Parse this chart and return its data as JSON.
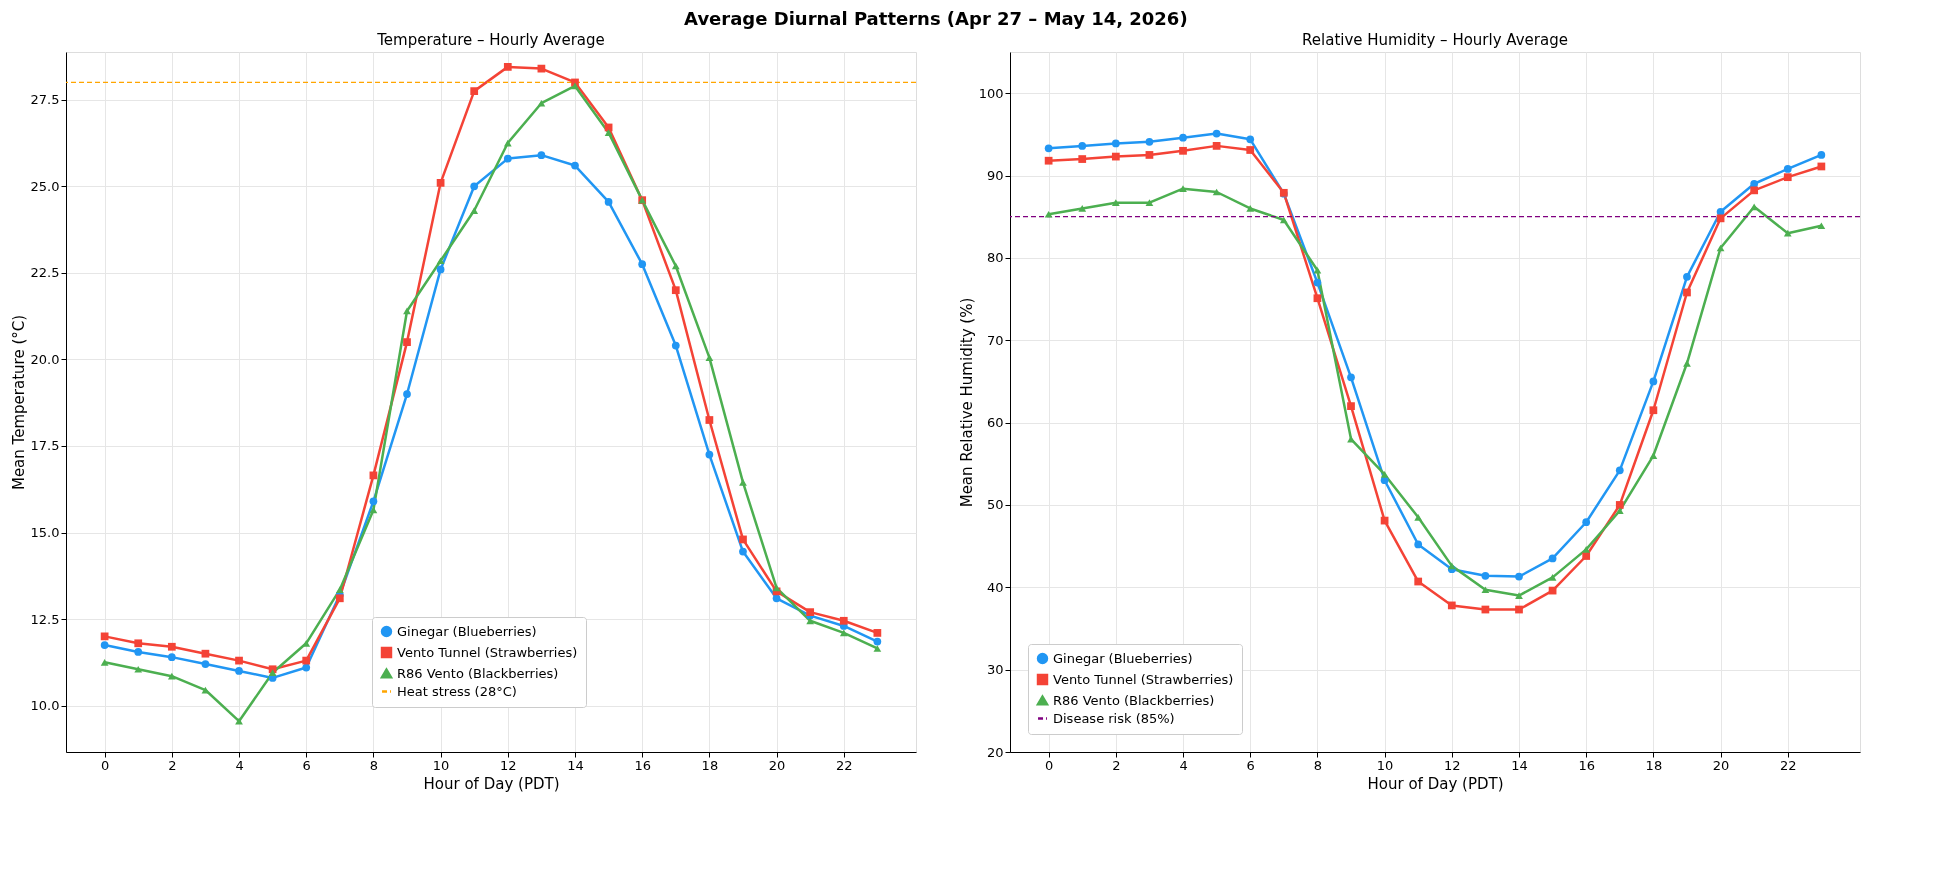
{
  "chart_data": [
    {
      "type": "line",
      "title": "Temperature – Hourly Average",
      "annotations": [
        "Average Diurnal Patterns (Apr 27 – May 14, 2026)"
      ],
      "xlabel": "Hour of Day (PDT)",
      "ylabel": "Mean Temperature (°C)",
      "x": [
        0,
        1,
        2,
        3,
        4,
        5,
        6,
        7,
        8,
        9,
        10,
        11,
        12,
        13,
        14,
        15,
        16,
        17,
        18,
        19,
        20,
        21,
        22,
        23
      ],
      "series": [
        {
          "name": "Ginegar (Blueberries)",
          "color": "#2196f3",
          "marker": "circle",
          "values": [
            11.75,
            11.55,
            11.4,
            11.2,
            11.0,
            10.8,
            11.1,
            13.2,
            15.9,
            19.0,
            22.6,
            25.0,
            25.8,
            25.9,
            25.6,
            24.55,
            22.75,
            20.4,
            17.25,
            14.45,
            13.1,
            12.6,
            12.3,
            11.85
          ]
        },
        {
          "name": "Vento Tunnel (Strawberries)",
          "color": "#f44336",
          "marker": "square",
          "values": [
            12.0,
            11.8,
            11.7,
            11.5,
            11.3,
            11.05,
            11.3,
            13.1,
            16.65,
            20.5,
            25.1,
            27.75,
            28.45,
            28.4,
            28.0,
            26.7,
            24.6,
            22.0,
            18.25,
            14.8,
            13.3,
            12.7,
            12.45,
            12.1
          ]
        },
        {
          "name": "R86 Vento (Blackberries)",
          "color": "#4caf50",
          "marker": "triangle",
          "values": [
            11.25,
            11.05,
            10.85,
            10.45,
            9.55,
            10.95,
            11.8,
            13.35,
            15.65,
            21.4,
            22.85,
            24.3,
            26.25,
            27.4,
            27.9,
            26.55,
            24.6,
            22.7,
            20.05,
            16.45,
            13.4,
            12.45,
            12.1,
            11.65
          ]
        }
      ],
      "ref_lines": [
        {
          "axis": "y",
          "value": 28,
          "label": "Heat stress (28°C)",
          "color": "#ffa500",
          "line_style": "dashed"
        }
      ],
      "xlim": [
        -1.15,
        24.15
      ],
      "xticks": [
        0,
        2,
        4,
        6,
        8,
        10,
        12,
        14,
        16,
        18,
        20,
        22
      ],
      "ylim": [
        8.66,
        28.88
      ],
      "yticks": [
        {
          "value": 10,
          "label": "10.0"
        },
        {
          "value": 12.5,
          "label": "12.5"
        },
        {
          "value": 15,
          "label": "15.0"
        },
        {
          "value": 17.5,
          "label": "17.5"
        },
        {
          "value": 20,
          "label": "20.0"
        },
        {
          "value": 22.5,
          "label": "22.5"
        },
        {
          "value": 25,
          "label": "25.0"
        },
        {
          "value": 27.5,
          "label": "27.5"
        }
      ],
      "grid": true,
      "legend": "bottom"
    },
    {
      "type": "line",
      "title": "Relative Humidity – Hourly Average",
      "xlabel": "Hour of Day (PDT)",
      "ylabel": "Mean Relative Humidity (%)",
      "x": [
        0,
        1,
        2,
        3,
        4,
        5,
        6,
        7,
        8,
        9,
        10,
        11,
        12,
        13,
        14,
        15,
        16,
        17,
        18,
        19,
        20,
        21,
        22,
        23
      ],
      "series": [
        {
          "name": "Ginegar (Blueberries)",
          "color": "#2196f3",
          "marker": "circle",
          "values": [
            93.3,
            93.6,
            93.9,
            94.1,
            94.6,
            95.1,
            94.4,
            87.8,
            77.0,
            65.5,
            53.0,
            45.2,
            42.2,
            41.4,
            41.3,
            43.5,
            47.9,
            54.2,
            65.0,
            77.7,
            85.6,
            89.0,
            90.8,
            92.5
          ]
        },
        {
          "name": "Vento Tunnel (Strawberries)",
          "color": "#f44336",
          "marker": "square",
          "values": [
            91.8,
            92.0,
            92.3,
            92.5,
            93.0,
            93.6,
            93.1,
            87.9,
            75.1,
            62.0,
            48.1,
            40.7,
            37.8,
            37.3,
            37.3,
            39.6,
            43.8,
            50.0,
            61.5,
            75.8,
            84.8,
            88.2,
            89.8,
            91.1
          ]
        },
        {
          "name": "R86 Vento (Blackberries)",
          "color": "#4caf50",
          "marker": "triangle",
          "values": [
            85.3,
            86.0,
            86.7,
            86.7,
            88.4,
            88.0,
            86.0,
            84.6,
            78.5,
            58.0,
            53.7,
            48.5,
            42.6,
            39.7,
            39.0,
            41.2,
            44.6,
            49.3,
            56.0,
            67.2,
            81.2,
            86.2,
            83.0,
            83.9
          ]
        }
      ],
      "ref_lines": [
        {
          "axis": "y",
          "value": 85,
          "label": "Disease risk (85%)",
          "color": "#800080",
          "line_style": "dashed"
        }
      ],
      "xlim": [
        -1.15,
        24.15
      ],
      "xticks": [
        0,
        2,
        4,
        6,
        8,
        10,
        12,
        14,
        16,
        18,
        20,
        22
      ],
      "ylim": [
        20,
        105
      ],
      "yticks": [
        20,
        30,
        40,
        50,
        60,
        70,
        80,
        90,
        100
      ],
      "grid": true,
      "legend": "bottom left"
    }
  ]
}
